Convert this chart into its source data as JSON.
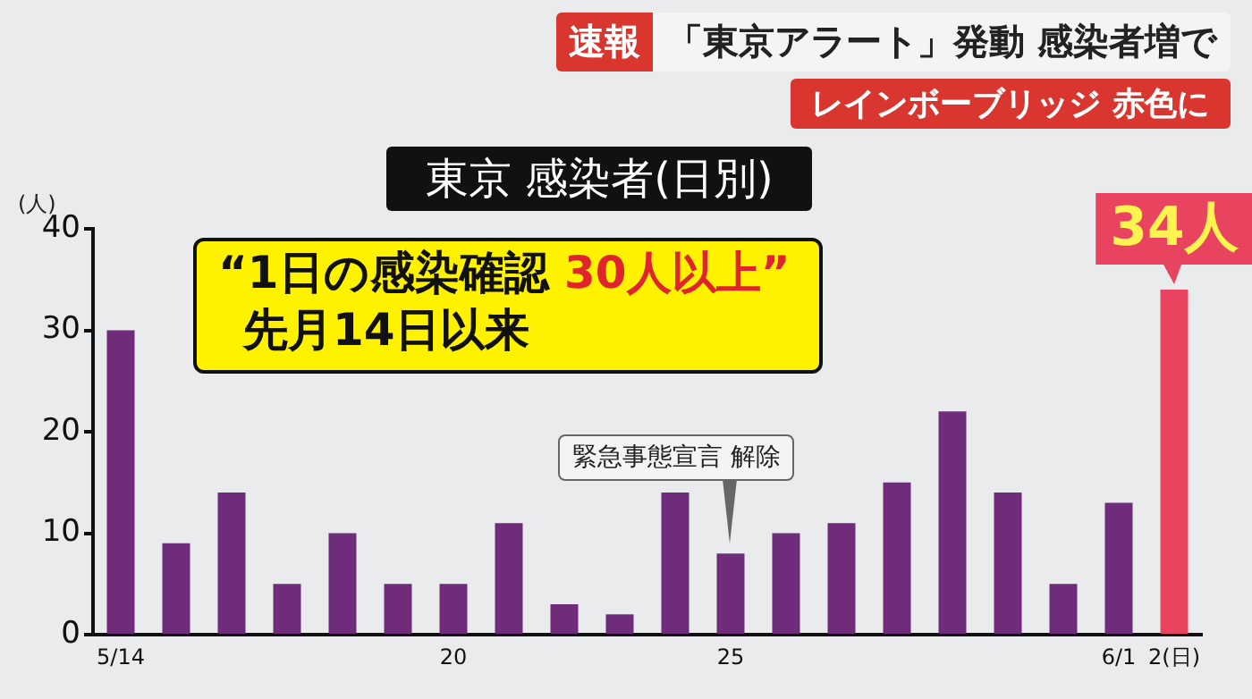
{
  "chart_data": {
    "type": "bar",
    "title": "東京 感染者(日別)",
    "ylabel": "(人)",
    "categories": [
      "5/14",
      null,
      null,
      null,
      null,
      null,
      "20",
      null,
      null,
      null,
      null,
      "25",
      null,
      null,
      null,
      null,
      null,
      null,
      "6/1",
      "2(日)"
    ],
    "values": [
      30,
      9,
      14,
      5,
      10,
      5,
      5,
      11,
      3,
      2,
      14,
      8,
      10,
      11,
      15,
      22,
      14,
      5,
      13,
      34
    ],
    "colors": [
      "#6f2c7a",
      "#6f2c7a",
      "#6f2c7a",
      "#6f2c7a",
      "#6f2c7a",
      "#6f2c7a",
      "#6f2c7a",
      "#6f2c7a",
      "#6f2c7a",
      "#6f2c7a",
      "#6f2c7a",
      "#6f2c7a",
      "#6f2c7a",
      "#6f2c7a",
      "#6f2c7a",
      "#6f2c7a",
      "#6f2c7a",
      "#6f2c7a",
      "#6f2c7a",
      "#e8445f"
    ],
    "value_labels": [
      null,
      null,
      null,
      null,
      null,
      null,
      null,
      null,
      null,
      null,
      null,
      null,
      null,
      null,
      null,
      null,
      null,
      null,
      null,
      "34人"
    ],
    "ylim": [
      0,
      40
    ],
    "yticks": [
      0,
      10,
      20,
      30,
      40
    ],
    "grid": false,
    "legend": false,
    "annotations": [
      "速報",
      "「東京アラート」発動 感染者増で",
      "レインボーブリッジ 赤色に",
      "“1日の感染確認",
      "30人以上”",
      "先月14日以来",
      "緊急事態宣言 解除"
    ]
  }
}
